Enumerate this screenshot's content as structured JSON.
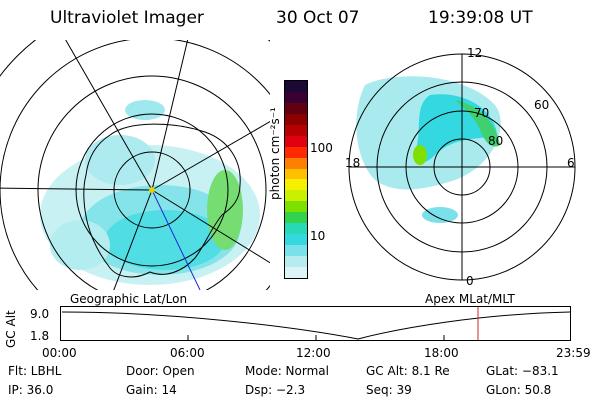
{
  "header": {
    "title": "Ultraviolet Imager",
    "date": "30 Oct 07",
    "time": "19:39:08 UT"
  },
  "geo_panel": {
    "caption": "Geographic Lat/Lon"
  },
  "apex_panel": {
    "caption": "Apex  MLat/MLT",
    "lat_labels": [
      "60",
      "70",
      "80"
    ],
    "mlt_labels": {
      "top": "12",
      "left": "18",
      "right": "6",
      "bottom": "0"
    }
  },
  "colorbar": {
    "unit_label": "photon cm⁻²s⁻¹",
    "ticks": [
      "100",
      "10"
    ],
    "colors": [
      "#1a0a33",
      "#3a0033",
      "#600010",
      "#8c0000",
      "#b80000",
      "#e00010",
      "#ff2a00",
      "#ff7f00",
      "#ffc000",
      "#f6f000",
      "#c8f000",
      "#7fe000",
      "#33d24d",
      "#29d8b4",
      "#33d8e0",
      "#7ae0ea",
      "#b6ecf0",
      "#ddf5f6"
    ]
  },
  "altitude_plot": {
    "ylabel": "GC Alt",
    "y_ticks": [
      "9.0",
      "1.8"
    ],
    "x_ticks": [
      "00:00",
      "06:00",
      "12:00",
      "18:00",
      "23:59"
    ],
    "marker_color": "#cc2a2a"
  },
  "info": {
    "row1": [
      "Flt: LBHL",
      "Door: Open",
      "Mode: Normal",
      "GC Alt: 8.1 Re",
      "GLat: −83.1"
    ],
    "row2": [
      "IP: 36.0",
      "Gain: 14",
      "Dsp:    −2.3",
      "Seq: 39",
      "GLon:  50.8"
    ]
  }
}
